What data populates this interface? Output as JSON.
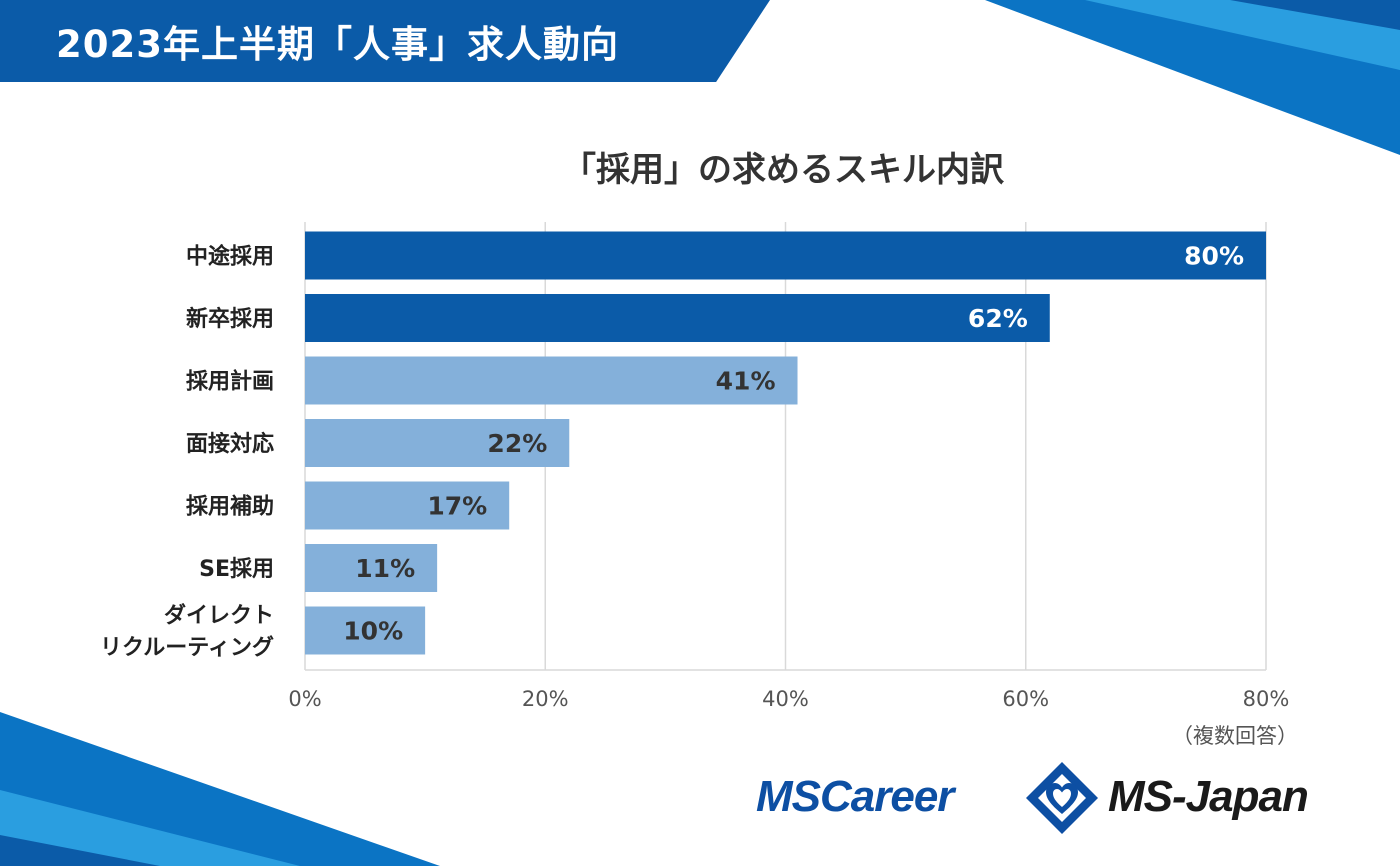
{
  "header": {
    "title": "2023年上半期「人事」求人動向"
  },
  "colors": {
    "brand_blue": "#0b5ba8",
    "bar_highlight": "#0b5ba8",
    "bar_normal": "#84b0da",
    "grid": "#d9d9d9",
    "label_on_dark": "#ffffff",
    "label_on_light": "#333333"
  },
  "chart_data": {
    "type": "bar",
    "orientation": "horizontal",
    "title": "「採用」の求めるスキル内訳",
    "categories": [
      "中途採用",
      "新卒採用",
      "採用計画",
      "面接対応",
      "採用補助",
      "SE採用",
      "ダイレクト\nリクルーティング"
    ],
    "values": [
      80,
      62,
      41,
      22,
      17,
      11,
      10
    ],
    "value_labels": [
      "80%",
      "62%",
      "41%",
      "22%",
      "17%",
      "11%",
      "10%"
    ],
    "highlighted": [
      true,
      true,
      false,
      false,
      false,
      false,
      false
    ],
    "xlim": [
      0,
      80
    ],
    "xticks": [
      0,
      20,
      40,
      60,
      80
    ],
    "xtick_labels": [
      "0%",
      "20%",
      "40%",
      "60%",
      "80%"
    ],
    "grid": true,
    "note": "（複数回答）"
  },
  "logos": {
    "left_text": "MSCareer",
    "left_icon": "diamond-heart-logo-icon",
    "right_text": "MS-Japan"
  }
}
